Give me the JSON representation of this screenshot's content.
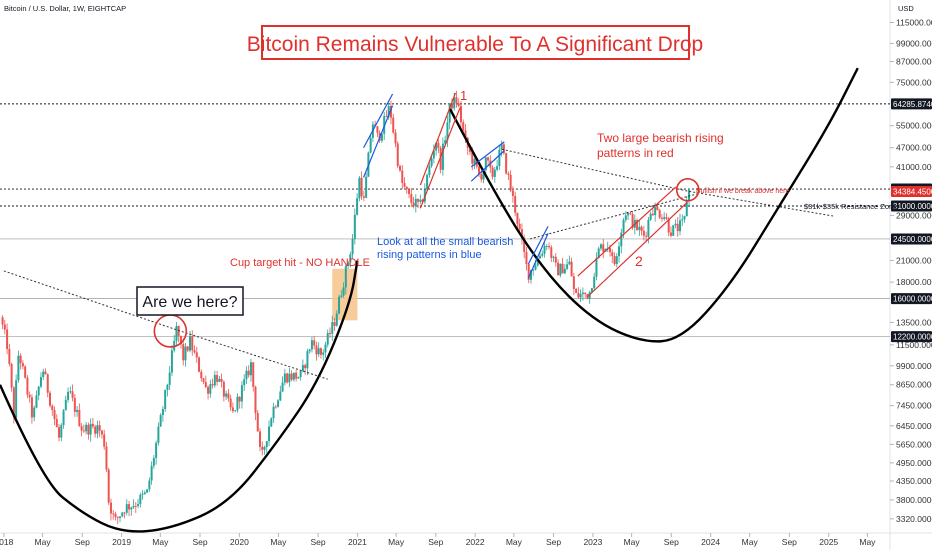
{
  "chart_data": {
    "type": "candlestick",
    "header": "Bitcoin / U.S. Dollar, 1W, EIGHTCAP",
    "currency": "USD",
    "title": "Bitcoin Remains Vulnerable To A Significant Drop",
    "y_scale": "log",
    "ylim": [
      3000,
      135000
    ],
    "x_range": [
      "2017-12-20",
      "2025-07-10"
    ],
    "x_ticks": [
      {
        "label": "2018",
        "date": "2018-01-01"
      },
      {
        "label": "May",
        "date": "2018-05-01"
      },
      {
        "label": "Sep",
        "date": "2018-09-01"
      },
      {
        "label": "2019",
        "date": "2019-01-01"
      },
      {
        "label": "May",
        "date": "2019-05-01"
      },
      {
        "label": "Sep",
        "date": "2019-09-01"
      },
      {
        "label": "2020",
        "date": "2020-01-01"
      },
      {
        "label": "May",
        "date": "2020-05-01"
      },
      {
        "label": "Sep",
        "date": "2020-09-01"
      },
      {
        "label": "2021",
        "date": "2021-01-01"
      },
      {
        "label": "May",
        "date": "2021-05-01"
      },
      {
        "label": "Sep",
        "date": "2021-09-01"
      },
      {
        "label": "2022",
        "date": "2022-01-01"
      },
      {
        "label": "May",
        "date": "2022-05-01"
      },
      {
        "label": "Sep",
        "date": "2022-09-01"
      },
      {
        "label": "2023",
        "date": "2023-01-01"
      },
      {
        "label": "May",
        "date": "2023-05-01"
      },
      {
        "label": "Sep",
        "date": "2023-09-01"
      },
      {
        "label": "2024",
        "date": "2024-01-01"
      },
      {
        "label": "May",
        "date": "2024-05-01"
      },
      {
        "label": "Sep",
        "date": "2024-09-01"
      },
      {
        "label": "2025",
        "date": "2025-01-01"
      },
      {
        "label": "May",
        "date": "2025-05-01"
      }
    ],
    "y_ticks": [
      {
        "label": "115000.0000",
        "value": 115000
      },
      {
        "label": "99000.0000",
        "value": 99000
      },
      {
        "label": "87000.0000",
        "value": 87000
      },
      {
        "label": "75000.0000",
        "value": 75000
      },
      {
        "label": "55000.0000",
        "value": 55000
      },
      {
        "label": "47000.0000",
        "value": 47000
      },
      {
        "label": "41000.0000",
        "value": 41000
      },
      {
        "label": "29000.0000",
        "value": 29000
      },
      {
        "label": "21000.0000",
        "value": 21000
      },
      {
        "label": "18000.0000",
        "value": 18000
      },
      {
        "label": "13500.0000",
        "value": 13500
      },
      {
        "label": "11500.0000",
        "value": 11500
      },
      {
        "label": "9900.0000",
        "value": 9900
      },
      {
        "label": "8650.0000",
        "value": 8650
      },
      {
        "label": "7450.0000",
        "value": 7450
      },
      {
        "label": "6450.0000",
        "value": 6450
      },
      {
        "label": "5650.0000",
        "value": 5650
      },
      {
        "label": "4950.0000",
        "value": 4950
      },
      {
        "label": "4350.0000",
        "value": 4350
      },
      {
        "label": "3800.0000",
        "value": 3800
      },
      {
        "label": "3320.0000",
        "value": 3320
      }
    ],
    "levels": [
      {
        "label": "64285.8740",
        "value": 64285.874
      },
      {
        "label": "35000.0000",
        "value": 35000
      },
      {
        "label": "34384.4500",
        "value": 34384.45,
        "highlight": true
      },
      {
        "label": "31000.0000",
        "value": 31000
      },
      {
        "label": "24500.0000",
        "value": 24500
      },
      {
        "label": "16000.0000",
        "value": 16000
      },
      {
        "label": "12200.0000",
        "value": 12200
      }
    ],
    "price_path": [
      [
        "2017-12-25",
        14000
      ],
      [
        "2018-01-15",
        11500
      ],
      [
        "2018-02-05",
        7000
      ],
      [
        "2018-02-20",
        11000
      ],
      [
        "2018-04-05",
        6800
      ],
      [
        "2018-05-05",
        9800
      ],
      [
        "2018-06-25",
        5900
      ],
      [
        "2018-07-25",
        8300
      ],
      [
        "2018-09-05",
        6300
      ],
      [
        "2018-10-25",
        6400
      ],
      [
        "2018-11-15",
        5600
      ],
      [
        "2018-11-25",
        3800
      ],
      [
        "2018-12-15",
        3250
      ],
      [
        "2019-01-15",
        3600
      ],
      [
        "2019-02-15",
        3700
      ],
      [
        "2019-03-25",
        4000
      ],
      [
        "2019-04-15",
        5200
      ],
      [
        "2019-05-25",
        8500
      ],
      [
        "2019-06-25",
        13000
      ],
      [
        "2019-07-15",
        10500
      ],
      [
        "2019-08-05",
        11800
      ],
      [
        "2019-09-25",
        8300
      ],
      [
        "2019-10-25",
        9300
      ],
      [
        "2019-12-15",
        7000
      ],
      [
        "2020-02-10",
        10000
      ],
      [
        "2020-03-12",
        5000
      ],
      [
        "2020-04-15",
        7100
      ],
      [
        "2020-05-25",
        9200
      ],
      [
        "2020-07-15",
        9200
      ],
      [
        "2020-08-15",
        11800
      ],
      [
        "2020-09-15",
        10700
      ],
      [
        "2020-10-25",
        13500
      ],
      [
        "2020-11-25",
        18500
      ],
      [
        "2020-12-20",
        24000
      ],
      [
        "2021-01-10",
        38000
      ],
      [
        "2021-01-25",
        32000
      ],
      [
        "2021-02-20",
        57000
      ],
      [
        "2021-03-10",
        50000
      ],
      [
        "2021-04-15",
        63000
      ],
      [
        "2021-05-20",
        37000
      ],
      [
        "2021-06-20",
        32000
      ],
      [
        "2021-07-20",
        31000
      ],
      [
        "2021-09-05",
        50000
      ],
      [
        "2021-09-20",
        42000
      ],
      [
        "2021-10-20",
        64000
      ],
      [
        "2021-11-10",
        66000
      ],
      [
        "2021-12-05",
        49000
      ],
      [
        "2022-01-20",
        38000
      ],
      [
        "2022-02-10",
        43000
      ],
      [
        "2022-02-25",
        38000
      ],
      [
        "2022-03-28",
        47000
      ],
      [
        "2022-05-10",
        30000
      ],
      [
        "2022-06-18",
        19000
      ],
      [
        "2022-07-15",
        21000
      ],
      [
        "2022-08-15",
        24000
      ],
      [
        "2022-09-15",
        19500
      ],
      [
        "2022-10-25",
        20500
      ],
      [
        "2022-11-10",
        16300
      ],
      [
        "2022-12-25",
        16600
      ],
      [
        "2023-01-25",
        23000
      ],
      [
        "2023-02-25",
        23500
      ],
      [
        "2023-03-10",
        20000
      ],
      [
        "2023-04-15",
        30000
      ],
      [
        "2023-05-15",
        27000
      ],
      [
        "2023-06-15",
        25000
      ],
      [
        "2023-07-05",
        30500
      ],
      [
        "2023-08-15",
        29000
      ],
      [
        "2023-09-01",
        26000
      ],
      [
        "2023-09-25",
        26500
      ],
      [
        "2023-10-15",
        27500
      ],
      [
        "2023-10-25",
        34500
      ]
    ],
    "trend_lines": [
      {
        "name": "cup-left-arc",
        "color": "#000000",
        "points": [
          [
            "2017-12-20",
            8650
          ],
          [
            "2018-05-01",
            4350
          ],
          [
            "2018-09-01",
            3450
          ],
          [
            "2019-01-01",
            3000
          ],
          [
            "2019-06-01",
            3080
          ],
          [
            "2019-12-01",
            3700
          ],
          [
            "2020-05-01",
            5800
          ],
          [
            "2020-09-01",
            8800
          ],
          [
            "2020-12-10",
            15500
          ],
          [
            "2021-01-01",
            21000
          ]
        ]
      },
      {
        "name": "cup-right-arc",
        "color": "#000000",
        "points": [
          [
            "2021-10-15",
            62000
          ],
          [
            "2022-03-01",
            34000
          ],
          [
            "2022-08-01",
            19500
          ],
          [
            "2023-01-01",
            13700
          ],
          [
            "2023-06-01",
            11700
          ],
          [
            "2023-10-01",
            11900
          ],
          [
            "2024-03-01",
            17500
          ],
          [
            "2024-08-01",
            31000
          ],
          [
            "2025-01-01",
            55000
          ],
          [
            "2025-04-01",
            83000
          ]
        ]
      },
      {
        "name": "neckline-2018",
        "color": "#333333",
        "dashed": true,
        "points": [
          [
            "2018-01-01",
            19500
          ],
          [
            "2019-07-01",
            12700
          ],
          [
            "2020-10-01",
            9000
          ]
        ]
      },
      {
        "name": "resistance-2022",
        "color": "#333333",
        "dashed": true,
        "points": [
          [
            "2022-03-25",
            46500
          ],
          [
            "2023-10-20",
            34500
          ],
          [
            "2025-01-20",
            28800
          ]
        ]
      },
      {
        "name": "support-2022",
        "color": "#333333",
        "dashed": true,
        "points": [
          [
            "2022-06-20",
            24500
          ],
          [
            "2023-11-20",
            33800
          ]
        ]
      },
      {
        "name": "blue-wedge-1",
        "color": "#1a58e0",
        "points": [
          [
            "2021-01-20",
            38000
          ],
          [
            "2021-04-20",
            63500
          ]
        ]
      },
      {
        "name": "blue-wedge-1b",
        "color": "#1a58e0",
        "points": [
          [
            "2021-01-20",
            47000
          ],
          [
            "2021-04-20",
            69000
          ]
        ]
      },
      {
        "name": "blue-wedge-2",
        "color": "#1a58e0",
        "points": [
          [
            "2021-12-20",
            37000
          ],
          [
            "2022-04-01",
            46000
          ]
        ]
      },
      {
        "name": "blue-wedge-2b",
        "color": "#1a58e0",
        "points": [
          [
            "2021-12-20",
            41000
          ],
          [
            "2022-04-01",
            49000
          ]
        ]
      },
      {
        "name": "blue-wedge-3",
        "color": "#1a58e0",
        "points": [
          [
            "2022-06-15",
            18500
          ],
          [
            "2022-08-15",
            25500
          ]
        ]
      },
      {
        "name": "blue-wedge-3b",
        "color": "#1a58e0",
        "points": [
          [
            "2022-06-15",
            20500
          ],
          [
            "2022-08-15",
            26800
          ]
        ]
      },
      {
        "name": "red-wedge-1-lower",
        "color": "#e0302c",
        "points": [
          [
            "2021-07-15",
            30500
          ],
          [
            "2021-11-15",
            62500
          ]
        ]
      },
      {
        "name": "red-wedge-1-upper",
        "color": "#e0302c",
        "points": [
          [
            "2021-07-15",
            36000
          ],
          [
            "2021-11-01",
            69500
          ]
        ]
      },
      {
        "name": "red-wedge-2-lower",
        "color": "#e0302c",
        "points": [
          [
            "2022-12-15",
            16200
          ],
          [
            "2023-10-20",
            31800
          ]
        ]
      },
      {
        "name": "red-wedge-2-upper",
        "color": "#e0302c",
        "points": [
          [
            "2022-11-15",
            18800
          ],
          [
            "2023-09-15",
            35500
          ]
        ]
      }
    ],
    "annotations": {
      "cup_target": "Cup target hit - NO HANDLE",
      "are_we_here": "Are we here?",
      "blue_note": "Look at all the small bearish rising patterns in blue",
      "red_note": "Two large bearish rising patterns in red",
      "bullish_note": "Bullish if we break above here",
      "resistance_zone": "$31k-$35k Resistance Zone",
      "marker_1": "1",
      "marker_2": "2"
    }
  }
}
